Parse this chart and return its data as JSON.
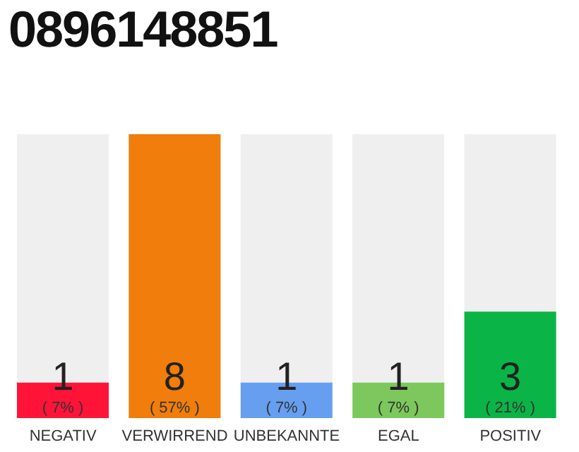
{
  "chart_data": {
    "type": "bar",
    "title": "0896148851",
    "categories": [
      "NEGATIV",
      "VERWIRREND",
      "UNBEKANNTE",
      "EGAL",
      "POSITIV"
    ],
    "values": [
      1,
      8,
      1,
      1,
      3
    ],
    "colors": [
      "#ff1438",
      "#f07d0c",
      "#679ff0",
      "#7cc85d",
      "#0bb446"
    ],
    "data_labels": true,
    "annotations": [
      "( 7% )",
      "( 57% )",
      "( 7% )",
      "( 7% )",
      "( 21% )"
    ],
    "grid": false
  }
}
